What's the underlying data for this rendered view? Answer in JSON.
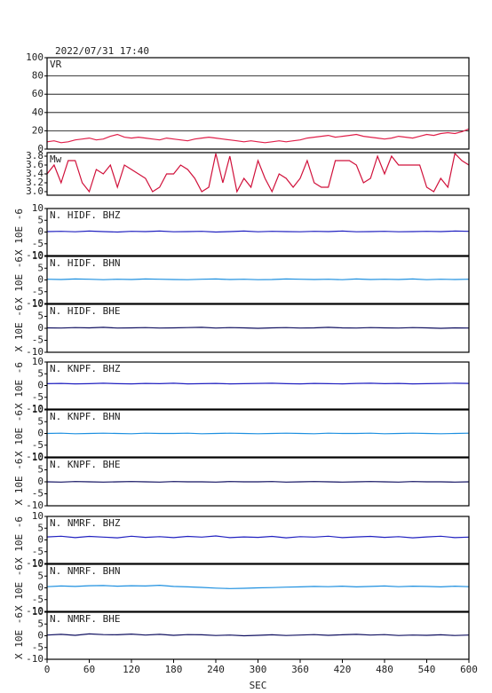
{
  "chart_data": [
    {
      "type": "line",
      "title": "2022/07/31 17:40",
      "xlim": [
        0,
        600
      ],
      "ylim": [
        0,
        100
      ],
      "yticks": [
        0,
        20,
        40,
        60,
        80,
        100
      ],
      "grid": true,
      "x": [
        0,
        10,
        20,
        30,
        40,
        50,
        60,
        70,
        80,
        90,
        100,
        110,
        120,
        130,
        140,
        150,
        160,
        170,
        180,
        190,
        200,
        210,
        220,
        230,
        240,
        250,
        260,
        270,
        280,
        290,
        300,
        310,
        320,
        330,
        340,
        350,
        360,
        370,
        380,
        390,
        400,
        410,
        420,
        430,
        440,
        450,
        460,
        470,
        480,
        490,
        500,
        510,
        520,
        530,
        540,
        550,
        560,
        570,
        580,
        590,
        600
      ],
      "series": [
        {
          "name": "VR",
          "color": "#e0204a",
          "values": [
            8,
            9,
            7,
            8,
            10,
            11,
            12,
            10,
            11,
            14,
            16,
            13,
            12,
            13,
            12,
            11,
            10,
            12,
            11,
            10,
            9,
            11,
            12,
            13,
            12,
            11,
            10,
            9,
            8,
            9,
            8,
            7,
            8,
            9,
            8,
            9,
            10,
            12,
            13,
            14,
            15,
            13,
            14,
            15,
            16,
            14,
            13,
            12,
            11,
            12,
            14,
            13,
            12,
            14,
            16,
            15,
            17,
            18,
            17,
            19,
            22
          ]
        }
      ]
    },
    {
      "type": "line",
      "xlim": [
        0,
        600
      ],
      "ylim": [
        2.92,
        3.88
      ],
      "yticks": [
        {
          "value": 3,
          "label": "3.0"
        },
        3.2,
        3.4,
        3.6,
        3.8
      ],
      "grid": false,
      "x": [
        0,
        10,
        20,
        30,
        40,
        50,
        60,
        70,
        80,
        90,
        100,
        110,
        120,
        130,
        140,
        150,
        160,
        170,
        180,
        190,
        200,
        210,
        220,
        230,
        240,
        250,
        260,
        270,
        280,
        290,
        300,
        310,
        320,
        330,
        340,
        350,
        360,
        370,
        380,
        390,
        400,
        410,
        420,
        430,
        440,
        450,
        460,
        470,
        480,
        490,
        500,
        510,
        520,
        530,
        540,
        550,
        560,
        570,
        580,
        590,
        600
      ],
      "series": [
        {
          "name": "Mw",
          "color": "#d0103a",
          "values": [
            3.4,
            3.6,
            3.2,
            3.7,
            3.7,
            3.2,
            3.0,
            3.5,
            3.4,
            3.6,
            3.1,
            3.6,
            3.5,
            3.4,
            3.3,
            3.0,
            3.1,
            3.4,
            3.4,
            3.6,
            3.5,
            3.3,
            3.0,
            3.1,
            3.86,
            3.2,
            3.8,
            3.0,
            3.3,
            3.1,
            3.7,
            3.3,
            3.0,
            3.4,
            3.3,
            3.1,
            3.3,
            3.7,
            3.2,
            3.1,
            3.1,
            3.7,
            3.7,
            3.7,
            3.6,
            3.2,
            3.3,
            3.8,
            3.4,
            3.8,
            3.6,
            3.6,
            3.6,
            3.6,
            3.1,
            3.0,
            3.3,
            3.1,
            3.86,
            3.7,
            3.6
          ]
        }
      ]
    },
    {
      "type": "line",
      "ylabel": "X 10E -6",
      "xlim": [
        0,
        600
      ],
      "ylim": [
        -10,
        10
      ],
      "yticks": [
        -10,
        -5,
        0,
        5,
        10
      ],
      "grid": false,
      "x": [
        0,
        20,
        40,
        60,
        80,
        100,
        120,
        140,
        160,
        180,
        200,
        220,
        240,
        260,
        280,
        300,
        320,
        340,
        360,
        380,
        400,
        420,
        440,
        460,
        480,
        500,
        520,
        540,
        560,
        580,
        600
      ],
      "series": [
        {
          "name": "N. HIDF. BHZ",
          "color": "#2020c0",
          "values": [
            0.2,
            0.3,
            0.1,
            0.4,
            0.2,
            0.0,
            0.3,
            0.2,
            0.4,
            0.1,
            0.2,
            0.3,
            0.0,
            0.2,
            0.4,
            0.1,
            0.3,
            0.2,
            0.1,
            0.3,
            0.2,
            0.4,
            0.1,
            0.2,
            0.3,
            0.1,
            0.2,
            0.3,
            0.2,
            0.4,
            0.3
          ]
        }
      ]
    },
    {
      "type": "line",
      "ylabel": "X 10E -6",
      "xlim": [
        0,
        600
      ],
      "ylim": [
        -10,
        10
      ],
      "yticks": [
        -10,
        -5,
        0,
        5,
        10
      ],
      "grid": false,
      "x": [
        0,
        20,
        40,
        60,
        80,
        100,
        120,
        140,
        160,
        180,
        200,
        220,
        240,
        260,
        280,
        300,
        320,
        340,
        360,
        380,
        400,
        420,
        440,
        460,
        480,
        500,
        520,
        540,
        560,
        580,
        600
      ],
      "series": [
        {
          "name": "N. HIDF. BHN",
          "color": "#1e90e0",
          "values": [
            0.3,
            0.2,
            0.4,
            0.3,
            0.1,
            0.3,
            0.2,
            0.4,
            0.3,
            0.2,
            0.1,
            0.3,
            0.4,
            0.2,
            0.3,
            0.1,
            0.2,
            0.4,
            0.3,
            0.2,
            0.3,
            0.1,
            0.4,
            0.2,
            0.3,
            0.2,
            0.4,
            0.1,
            0.3,
            0.2,
            0.3
          ]
        }
      ]
    },
    {
      "type": "line",
      "ylabel": "X 10E -6",
      "xlim": [
        0,
        600
      ],
      "ylim": [
        -10,
        10
      ],
      "yticks": [
        -10,
        -5,
        0,
        5,
        10
      ],
      "grid": false,
      "x": [
        0,
        20,
        40,
        60,
        80,
        100,
        120,
        140,
        160,
        180,
        200,
        220,
        240,
        260,
        280,
        300,
        320,
        340,
        360,
        380,
        400,
        420,
        440,
        460,
        480,
        500,
        520,
        540,
        560,
        580,
        600
      ],
      "series": [
        {
          "name": "N. HIDF. BHE",
          "color": "#101060",
          "values": [
            0.2,
            0.1,
            0.3,
            0.2,
            0.4,
            0.1,
            0.2,
            0.3,
            0.1,
            0.2,
            0.3,
            0.4,
            0.1,
            0.3,
            0.2,
            0.0,
            0.2,
            0.3,
            0.1,
            0.2,
            0.4,
            0.2,
            0.1,
            0.3,
            0.2,
            0.1,
            0.3,
            0.2,
            0.0,
            0.2,
            0.1
          ]
        }
      ]
    },
    {
      "type": "line",
      "ylabel": "X 10E -6",
      "xlim": [
        0,
        600
      ],
      "ylim": [
        -10,
        10
      ],
      "yticks": [
        -10,
        -5,
        0,
        5,
        10
      ],
      "grid": false,
      "x": [
        0,
        20,
        40,
        60,
        80,
        100,
        120,
        140,
        160,
        180,
        200,
        220,
        240,
        260,
        280,
        300,
        320,
        340,
        360,
        380,
        400,
        420,
        440,
        460,
        480,
        500,
        520,
        540,
        560,
        580,
        600
      ],
      "series": [
        {
          "name": "N. KNPF. BHZ",
          "color": "#2020c0",
          "values": [
            0.8,
            0.9,
            0.7,
            0.8,
            1.0,
            0.8,
            0.7,
            0.9,
            0.8,
            1.0,
            0.7,
            0.8,
            0.9,
            0.7,
            0.8,
            0.9,
            1.0,
            0.8,
            0.7,
            0.9,
            0.8,
            0.7,
            0.9,
            1.0,
            0.8,
            0.9,
            0.7,
            0.8,
            0.9,
            1.0,
            0.9
          ]
        }
      ]
    },
    {
      "type": "line",
      "ylabel": "X 10E -6",
      "xlim": [
        0,
        600
      ],
      "ylim": [
        -10,
        10
      ],
      "yticks": [
        -10,
        -5,
        0,
        5,
        10
      ],
      "grid": false,
      "x": [
        0,
        20,
        40,
        60,
        80,
        100,
        120,
        140,
        160,
        180,
        200,
        220,
        240,
        260,
        280,
        300,
        320,
        340,
        360,
        380,
        400,
        420,
        440,
        460,
        480,
        500,
        520,
        540,
        560,
        580,
        600
      ],
      "series": [
        {
          "name": "N. KNPF. BHN",
          "color": "#1e90e0",
          "values": [
            0.0,
            0.1,
            -0.1,
            0.0,
            0.1,
            0.0,
            -0.1,
            0.1,
            0.0,
            0.0,
            0.1,
            -0.1,
            0.0,
            0.1,
            0.0,
            -0.1,
            0.0,
            0.1,
            0.0,
            -0.1,
            0.1,
            0.0,
            0.0,
            0.1,
            -0.1,
            0.0,
            0.1,
            0.0,
            -0.1,
            0.0,
            0.1
          ]
        }
      ]
    },
    {
      "type": "line",
      "ylabel": "X 10E -6",
      "xlim": [
        0,
        600
      ],
      "ylim": [
        -10,
        10
      ],
      "yticks": [
        -10,
        -5,
        0,
        5,
        10
      ],
      "grid": false,
      "x": [
        0,
        20,
        40,
        60,
        80,
        100,
        120,
        140,
        160,
        180,
        200,
        220,
        240,
        260,
        280,
        300,
        320,
        340,
        360,
        380,
        400,
        420,
        440,
        460,
        480,
        500,
        520,
        540,
        560,
        580,
        600
      ],
      "series": [
        {
          "name": "N. KNPF. BHE",
          "color": "#101060",
          "values": [
            0.0,
            -0.1,
            0.1,
            0.0,
            -0.1,
            0.0,
            0.1,
            0.0,
            -0.1,
            0.1,
            0.0,
            0.0,
            -0.1,
            0.1,
            0.0,
            0.0,
            0.1,
            -0.1,
            0.0,
            0.1,
            0.0,
            -0.1,
            0.0,
            0.1,
            0.0,
            -0.1,
            0.1,
            0.0,
            0.0,
            -0.1,
            0.0
          ]
        }
      ]
    },
    {
      "type": "line",
      "ylabel": "X 10E -6",
      "xlim": [
        0,
        600
      ],
      "ylim": [
        -10,
        10
      ],
      "yticks": [
        -10,
        -5,
        0,
        5,
        10
      ],
      "grid": false,
      "x": [
        0,
        20,
        40,
        60,
        80,
        100,
        120,
        140,
        160,
        180,
        200,
        220,
        240,
        260,
        280,
        300,
        320,
        340,
        360,
        380,
        400,
        420,
        440,
        460,
        480,
        500,
        520,
        540,
        560,
        580,
        600
      ],
      "series": [
        {
          "name": "N. NMRF. BHZ",
          "color": "#2020c0",
          "values": [
            1.3,
            1.6,
            1.0,
            1.5,
            1.2,
            0.9,
            1.6,
            1.1,
            1.4,
            1.0,
            1.5,
            1.2,
            1.7,
            1.0,
            1.3,
            1.1,
            1.5,
            0.9,
            1.4,
            1.2,
            1.6,
            1.0,
            1.3,
            1.5,
            1.1,
            1.4,
            0.9,
            1.3,
            1.6,
            1.0,
            1.2
          ]
        }
      ]
    },
    {
      "type": "line",
      "ylabel": "X 10E -6",
      "xlim": [
        0,
        600
      ],
      "ylim": [
        -10,
        10
      ],
      "yticks": [
        -10,
        -5,
        0,
        5,
        10
      ],
      "grid": false,
      "x": [
        0,
        20,
        40,
        60,
        80,
        100,
        120,
        140,
        160,
        180,
        200,
        220,
        240,
        260,
        280,
        300,
        320,
        340,
        360,
        380,
        400,
        420,
        440,
        460,
        480,
        500,
        520,
        540,
        560,
        580,
        600
      ],
      "series": [
        {
          "name": "N. NMRF. BHN",
          "color": "#1e90e0",
          "values": [
            0.5,
            0.8,
            0.6,
            0.9,
            1.0,
            0.7,
            0.9,
            0.8,
            1.1,
            0.6,
            0.4,
            0.2,
            -0.1,
            -0.3,
            -0.2,
            0.0,
            0.1,
            0.3,
            0.4,
            0.6,
            0.5,
            0.7,
            0.4,
            0.6,
            0.8,
            0.5,
            0.7,
            0.6,
            0.4,
            0.7,
            0.5
          ]
        }
      ]
    },
    {
      "type": "line",
      "ylabel": "X 10E -6",
      "xlim": [
        0,
        600
      ],
      "ylim": [
        -10,
        10
      ],
      "yticks": [
        -10,
        -5,
        0,
        5,
        10
      ],
      "grid": false,
      "xticks": [
        0,
        60,
        120,
        180,
        240,
        300,
        360,
        420,
        480,
        540,
        600
      ],
      "xlabel": "SEC",
      "x": [
        0,
        20,
        40,
        60,
        80,
        100,
        120,
        140,
        160,
        180,
        200,
        220,
        240,
        260,
        280,
        300,
        320,
        340,
        360,
        380,
        400,
        420,
        440,
        460,
        480,
        500,
        520,
        540,
        560,
        580,
        600
      ],
      "series": [
        {
          "name": "N. NMRF. BHE",
          "color": "#101060",
          "values": [
            0.3,
            0.6,
            0.2,
            0.8,
            0.5,
            0.4,
            0.7,
            0.3,
            0.6,
            0.2,
            0.5,
            0.4,
            0.1,
            0.3,
            0.0,
            0.2,
            0.4,
            0.1,
            0.3,
            0.5,
            0.2,
            0.4,
            0.6,
            0.3,
            0.5,
            0.1,
            0.3,
            0.2,
            0.4,
            0.1,
            0.3
          ]
        }
      ]
    }
  ]
}
